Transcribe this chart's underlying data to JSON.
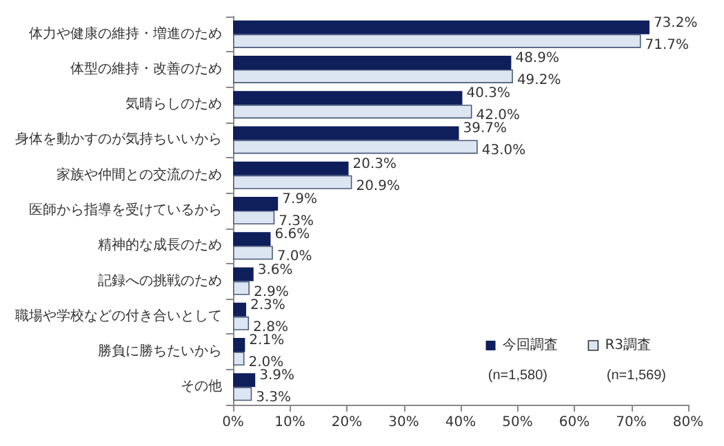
{
  "chart_data": {
    "type": "bar",
    "orientation": "horizontal",
    "categories": [
      "体力や健康の維持・増進のため",
      "体型の維持・改善のため",
      "気晴らしのため",
      "身体を動かすのが気持ちいいから",
      "家族や仲間との交流のため",
      "医師から指導を受けているから",
      "精神的な成長のため",
      "記録への挑戦のため",
      "職場や学校などの付き合いとして",
      "勝負に勝ちたいから",
      "その他"
    ],
    "series": [
      {
        "name": "今回調査",
        "color": "#0f1f5c",
        "values": [
          73.2,
          48.9,
          40.3,
          39.7,
          20.3,
          7.9,
          6.6,
          3.6,
          2.3,
          2.1,
          3.9
        ],
        "value_labels": [
          "73.2%",
          "48.9%",
          "40.3%",
          "39.7%",
          "20.3%",
          "7.9%",
          "6.6%",
          "3.6%",
          "2.3%",
          "2.1%",
          "3.9%"
        ]
      },
      {
        "name": "R3調査",
        "color": "#dce6f2",
        "values": [
          71.7,
          49.2,
          42.0,
          43.0,
          20.9,
          7.3,
          7.0,
          2.9,
          2.8,
          2.0,
          3.3
        ],
        "value_labels": [
          "71.7%",
          "49.2%",
          "42.0%",
          "43.0%",
          "20.9%",
          "7.3%",
          "7.0%",
          "2.9%",
          "2.8%",
          "2.0%",
          "3.3%"
        ]
      }
    ],
    "xlim": [
      0,
      80
    ],
    "xticks": [
      {
        "value": 0,
        "label": "0%"
      },
      {
        "value": 10,
        "label": "10%"
      },
      {
        "value": 20,
        "label": "20%"
      },
      {
        "value": 30,
        "label": "30%"
      },
      {
        "value": 40,
        "label": "40%"
      },
      {
        "value": 50,
        "label": "50%"
      },
      {
        "value": 60,
        "label": "60%"
      },
      {
        "value": 70,
        "label": "70%"
      },
      {
        "value": 80,
        "label": "80%"
      }
    ],
    "annotations": [
      "(n=1,580)",
      "(n=1,569)"
    ],
    "legend": "bottom right",
    "grid": false
  }
}
